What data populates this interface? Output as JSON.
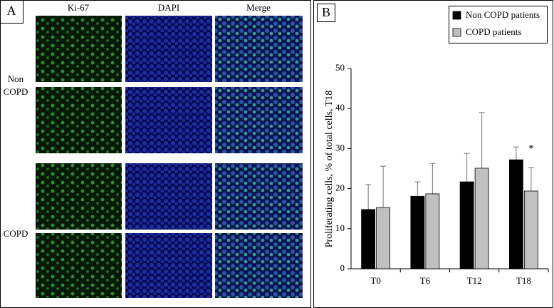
{
  "panel_a": {
    "label": "A",
    "columns": [
      "Ki-67",
      "DAPI",
      "Merge"
    ],
    "rows": [
      "Non COPD",
      "COPD"
    ]
  },
  "chart_data": {
    "type": "bar",
    "panel_label": "B",
    "y_label": "Proliferating cells, % of total cells, T18",
    "categories": [
      "T0",
      "T6",
      "T12",
      "T18"
    ],
    "series": [
      {
        "name": "Non COPD patients",
        "color": "#000000",
        "values": [
          14.8,
          18.1,
          21.7,
          27.2
        ],
        "errors": [
          6.2,
          3.6,
          7.1,
          3.2
        ]
      },
      {
        "name": "COPD patients",
        "color": "#c0c0c0",
        "values": [
          15.3,
          18.7,
          25.1,
          19.4
        ],
        "errors": [
          10.3,
          7.6,
          13.9,
          5.9
        ]
      }
    ],
    "ylim": [
      0,
      50
    ],
    "yticks": [
      0,
      10,
      20,
      30,
      40,
      50
    ],
    "annotation": "*",
    "legend": "top-right"
  }
}
